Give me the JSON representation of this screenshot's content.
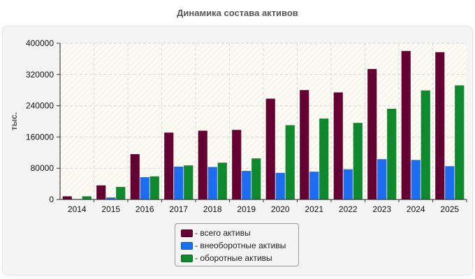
{
  "chart_data": {
    "type": "bar",
    "title": "Динамика состава активов",
    "ylabel": "тыс.",
    "xlabel": "",
    "ylim": [
      0,
      400000
    ],
    "yticks": [
      0,
      80000,
      160000,
      240000,
      320000,
      400000
    ],
    "ytick_labels": [
      "0",
      "80000",
      "160000",
      "240000",
      "320000",
      "400000"
    ],
    "grid": true,
    "legend_position": "bottom",
    "categories": [
      "2014",
      "2015",
      "2016",
      "2017",
      "2018",
      "2019",
      "2020",
      "2021",
      "2022",
      "2023",
      "2024",
      "2025"
    ],
    "series": [
      {
        "name": "- всего активы",
        "color": "#660033",
        "values": [
          8000,
          36000,
          116000,
          171000,
          176000,
          178000,
          258000,
          280000,
          274000,
          334000,
          380000,
          377000
        ]
      },
      {
        "name": "- внеоборотные активы",
        "color": "#1a6ef5",
        "values": [
          1000,
          5000,
          57000,
          84000,
          83000,
          73000,
          68000,
          71000,
          77000,
          103000,
          101000,
          85000
        ]
      },
      {
        "name": "- оборотные активы",
        "color": "#0d8a2c",
        "values": [
          8000,
          32000,
          59000,
          87000,
          94000,
          105000,
          190000,
          207000,
          196000,
          232000,
          279000,
          292000
        ]
      }
    ]
  }
}
